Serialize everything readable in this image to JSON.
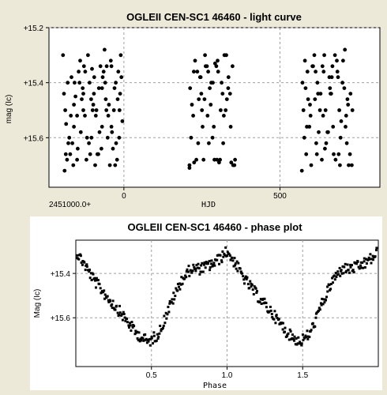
{
  "chart_data": [
    {
      "type": "scatter",
      "title": "OGLEII CEN-SC1 46460 - light curve",
      "xlabel": "HJD",
      "ylabel": "mag (Ic)",
      "x_offset_label": "2451000.0+",
      "xlim": [
        -240,
        820
      ],
      "ylim": [
        15.2,
        15.78
      ],
      "y_inverted": true,
      "xticks": [
        0,
        500
      ],
      "xtick_labels": [
        "0",
        "500"
      ],
      "yticks": [
        15.2,
        15.4,
        15.6
      ],
      "ytick_labels": [
        "+15.2",
        "+15.4",
        "+15.6"
      ],
      "grid": true,
      "point_color": "#000000",
      "series": [
        {
          "x": [
            -190,
            -175,
            -160,
            -145,
            -130,
            -115,
            -100,
            -85,
            -70,
            -55,
            -40,
            -25,
            -10,
            -185,
            -168,
            -150,
            -132,
            -118,
            -102,
            -88,
            -72,
            -58,
            -42,
            -28,
            -12,
            -180,
            -162,
            -140,
            -125,
            -108,
            -95,
            -78,
            -62,
            -48,
            -35,
            -18,
            -5,
            -178,
            -155,
            -138,
            -110,
            -92,
            -65,
            -50,
            -30,
            -15,
            -195,
            -170,
            -148,
            -128,
            -105,
            -82,
            -60,
            -38,
            -22,
            -8,
            -188,
            -165,
            -142,
            -120,
            -98,
            -75,
            -52,
            -32,
            -186,
            -160,
            -135,
            -112,
            -90,
            -68,
            -45,
            -20,
            -192,
            -172,
            -150,
            -124,
            -96,
            -70,
            -40,
            -14,
            -182,
            -158,
            -130,
            -104,
            -80,
            -56,
            -26
          ],
          "y": [
            15.72,
            15.6,
            15.48,
            15.36,
            15.44,
            15.3,
            15.5,
            15.66,
            15.42,
            15.34,
            15.56,
            15.62,
            15.3,
            15.55,
            15.38,
            15.68,
            15.42,
            15.6,
            15.35,
            15.5,
            15.64,
            15.46,
            15.32,
            15.7,
            15.44,
            15.4,
            15.7,
            15.32,
            15.52,
            15.66,
            15.38,
            15.58,
            15.28,
            15.48,
            15.64,
            15.36,
            15.54,
            15.62,
            15.45,
            15.58,
            15.4,
            15.7,
            15.36,
            15.52,
            15.42,
            15.6,
            15.3,
            15.52,
            15.64,
            15.34,
            15.46,
            15.66,
            15.4,
            15.58,
            15.68,
            15.38,
            15.5,
            15.62,
            15.4,
            15.68,
            15.48,
            15.34,
            15.6,
            15.5,
            15.66,
            15.56,
            15.46,
            15.62,
            15.52,
            15.38,
            15.7,
            15.46,
            15.44,
            15.66,
            15.52,
            15.36,
            15.44,
            15.56,
            15.34,
            15.5,
            15.68,
            15.4,
            15.5,
            15.6,
            15.42,
            15.5,
            15.4
          ]
        },
        {
          "x": [
            210,
            222,
            235,
            248,
            260,
            272,
            285,
            298,
            310,
            322,
            335,
            350,
            215,
            228,
            240,
            252,
            266,
            278,
            290,
            302,
            316,
            328,
            342,
            356,
            212,
            224,
            238,
            250,
            262,
            275,
            288,
            300,
            313,
            326,
            340,
            354,
            218,
            232,
            246,
            258,
            270,
            284,
            296,
            308,
            320,
            334,
            348,
            225,
            255,
            280,
            305,
            330,
            210,
            244,
            268,
            292,
            318,
            344
          ],
          "y": [
            15.7,
            15.52,
            15.36,
            15.44,
            15.3,
            15.62,
            15.4,
            15.68,
            15.5,
            15.3,
            15.38,
            15.7,
            15.6,
            15.32,
            15.46,
            15.56,
            15.34,
            15.48,
            15.68,
            15.36,
            15.44,
            15.3,
            15.56,
            15.68,
            15.42,
            15.36,
            15.62,
            15.5,
            15.34,
            15.42,
            15.56,
            15.32,
            15.4,
            15.5,
            15.44,
            15.7,
            15.48,
            15.68,
            15.38,
            15.46,
            15.36,
            15.6,
            15.34,
            15.68,
            15.52,
            15.42,
            15.34,
            15.69,
            15.68,
            15.4,
            15.69,
            15.46,
            15.71,
            15.38,
            15.52,
            15.33,
            15.62,
            15.69
          ]
        },
        {
          "x": [
            570,
            582,
            594,
            606,
            618,
            630,
            642,
            654,
            666,
            678,
            690,
            702,
            714,
            726,
            575,
            588,
            600,
            612,
            624,
            636,
            648,
            660,
            672,
            684,
            696,
            708,
            720,
            572,
            584,
            598,
            610,
            622,
            634,
            646,
            658,
            670,
            682,
            694,
            706,
            718,
            730,
            578,
            590,
            604,
            616,
            628,
            640,
            652,
            664,
            676,
            688,
            700,
            712,
            724,
            580,
            596,
            620,
            644,
            668,
            692,
            716,
            586,
            614,
            638,
            662,
            686,
            710,
            732
          ],
          "y": [
            15.72,
            15.42,
            15.56,
            15.34,
            15.66,
            15.44,
            15.3,
            15.58,
            15.38,
            15.68,
            15.5,
            15.32,
            15.62,
            15.44,
            15.5,
            15.36,
            15.7,
            15.46,
            15.58,
            15.34,
            15.62,
            15.42,
            15.66,
            15.36,
            15.54,
            15.28,
            15.7,
            15.4,
            15.66,
            15.52,
            15.3,
            15.44,
            15.68,
            15.5,
            15.38,
            15.56,
            15.32,
            15.6,
            15.42,
            15.48,
            15.7,
            15.6,
            15.46,
            15.34,
            15.62,
            15.5,
            15.36,
            15.58,
            15.44,
            15.3,
            15.66,
            15.4,
            15.52,
            15.66,
            15.32,
            15.48,
            15.4,
            15.64,
            15.34,
            15.7,
            15.46,
            15.56,
            15.36,
            15.52,
            15.44,
            15.38,
            15.56,
            15.5
          ]
        }
      ]
    },
    {
      "type": "scatter",
      "title": "OGLEII CEN-SC1 46460 - phase plot",
      "xlabel": "Phase",
      "ylabel": "Mag (Ic)",
      "xlim": [
        0,
        2
      ],
      "ylim": [
        15.25,
        15.82
      ],
      "y_inverted": true,
      "xticks": [
        0.5,
        1.0,
        1.5
      ],
      "xtick_labels": [
        "0.5",
        "1.0",
        "1.5"
      ],
      "yticks": [
        15.4,
        15.6
      ],
      "ytick_labels": [
        "+15.4",
        "+15.6"
      ],
      "grid": true,
      "point_color": "#000000",
      "light_curve_shape": {
        "phase": [
          0.0,
          0.05,
          0.12,
          0.2,
          0.3,
          0.4,
          0.48,
          0.55,
          0.62,
          0.7,
          0.76,
          0.82,
          0.9,
          0.96,
          1.0
        ],
        "mag": [
          15.3,
          15.35,
          15.43,
          15.5,
          15.58,
          15.67,
          15.71,
          15.67,
          15.55,
          15.43,
          15.38,
          15.38,
          15.36,
          15.33,
          15.3
        ]
      }
    }
  ]
}
